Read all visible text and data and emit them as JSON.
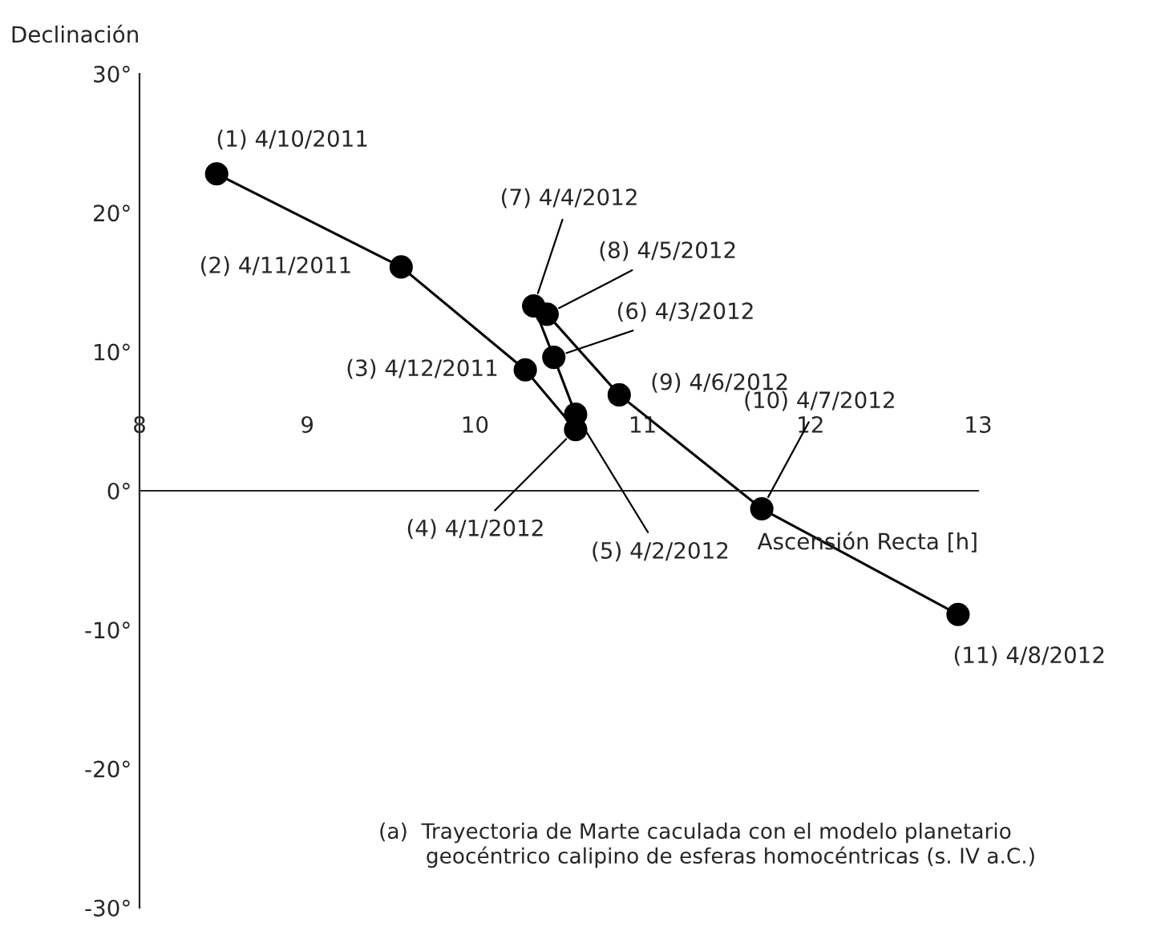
{
  "chart_data": {
    "type": "line",
    "xlabel": "Ascensión Recta [h]",
    "ylabel": "Declinación",
    "x": [
      8.46,
      9.56,
      10.3,
      10.6,
      10.6,
      10.47,
      10.35,
      10.43,
      10.86,
      11.71,
      12.88
    ],
    "series": [
      {
        "color": "#000000",
        "values": [
          22.8,
          16.1,
          8.7,
          4.4,
          5.5,
          9.6,
          13.3,
          12.7,
          6.9,
          -1.3,
          -8.9
        ]
      }
    ],
    "marker": "circle",
    "line_style": "solid",
    "grid": false,
    "xlim": [
      8,
      13
    ],
    "xticks": [
      8,
      9,
      10,
      11,
      12,
      13
    ],
    "ylim": [
      -30,
      30
    ],
    "yticks": [
      {
        "value": -30,
        "label": "-30°"
      },
      {
        "value": -20,
        "label": "-20°"
      },
      {
        "value": -10,
        "label": "-10°"
      },
      {
        "value": 0,
        "label": "0°"
      },
      {
        "value": 10,
        "label": "10°"
      },
      {
        "value": 20,
        "label": "20°"
      },
      {
        "value": 30,
        "label": "30°"
      }
    ],
    "annotations": [
      {
        "text": "(1) 4/10/2011",
        "x": 8.46,
        "y": 22.8
      },
      {
        "text": "(2) 4/11/2011",
        "x": 9.56,
        "y": 16.1
      },
      {
        "text": "(3) 4/12/2011",
        "x": 10.3,
        "y": 8.7
      },
      {
        "text": "(4) 4/1/2012",
        "x": 10.6,
        "y": 4.4
      },
      {
        "text": "(5) 4/2/2012",
        "x": 10.6,
        "y": 5.5
      },
      {
        "text": "(6) 4/3/2012",
        "x": 10.47,
        "y": 9.6
      },
      {
        "text": "(7) 4/4/2012",
        "x": 10.35,
        "y": 13.3
      },
      {
        "text": "(8) 4/5/2012",
        "x": 10.43,
        "y": 12.7
      },
      {
        "text": "(9) 4/6/2012",
        "x": 10.86,
        "y": 6.9
      },
      {
        "text": "(10) 4/7/2012",
        "x": 11.71,
        "y": -1.3
      },
      {
        "text": "(11) 4/8/2012",
        "x": 12.88,
        "y": -8.9
      },
      "(a)  Trayectoria de Marte caculada con el modelo planetario\n       geocéntrico calipino de esferas homocéntricas (s. IV a.C.)"
    ]
  }
}
